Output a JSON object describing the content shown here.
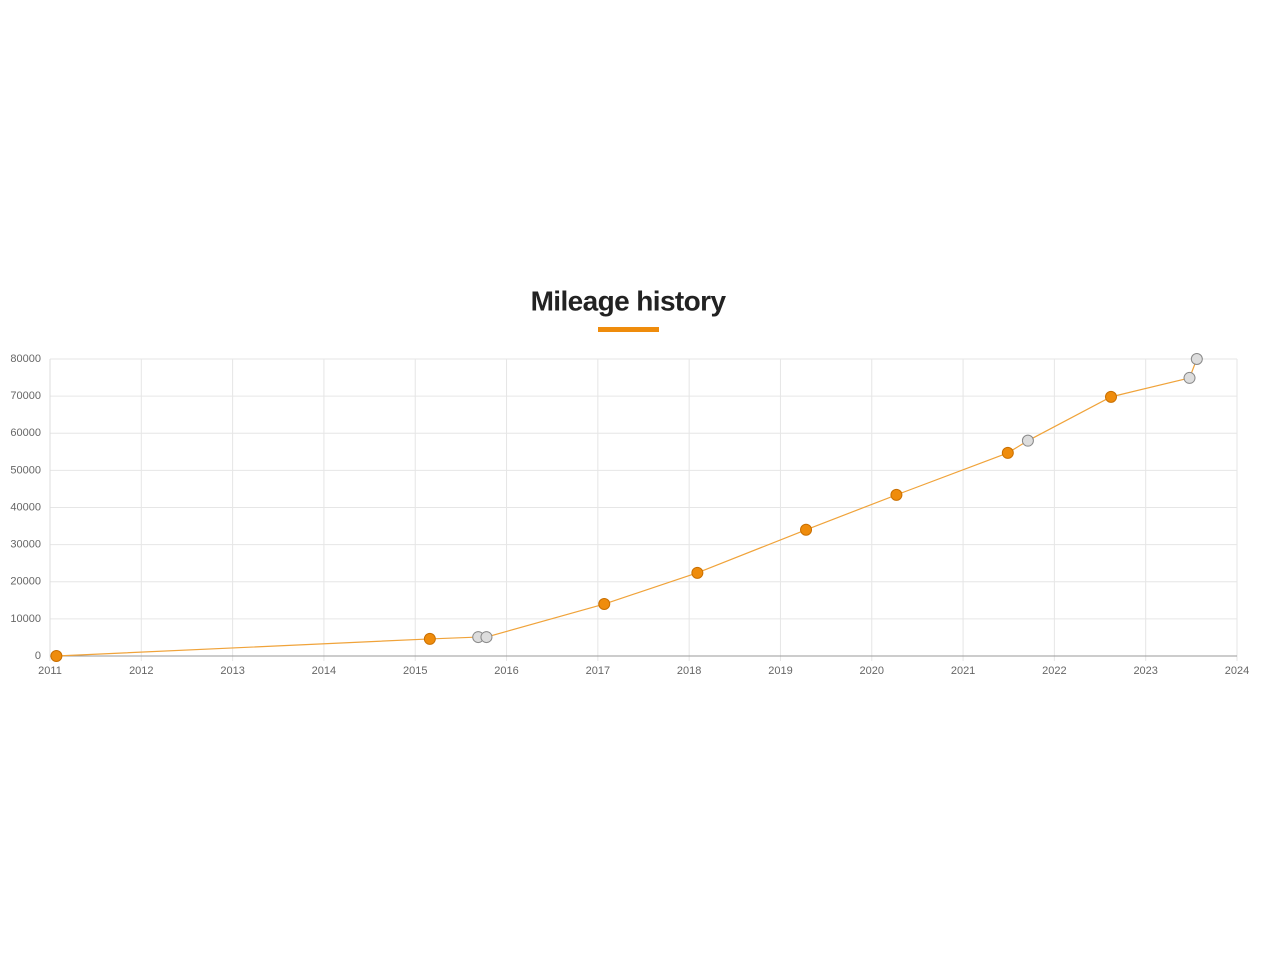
{
  "chart_data": {
    "type": "line",
    "title": "Mileage history",
    "x": [
      2011.07,
      2015.16,
      2015.69,
      2015.78,
      2017.07,
      2018.09,
      2019.28,
      2020.27,
      2021.49,
      2021.71,
      2022.62,
      2023.48,
      2023.56
    ],
    "values": [
      0,
      4600,
      5100,
      5100,
      14000,
      22400,
      34000,
      43400,
      54700,
      58000,
      69800,
      74900,
      80000
    ],
    "color": "#f0a33a",
    "point_colors": [
      "#ef8c0c",
      "#ef8c0c",
      "#dddddd",
      "#dddddd",
      "#ef8c0c",
      "#ef8c0c",
      "#ef8c0c",
      "#ef8c0c",
      "#ef8c0c",
      "#dddddd",
      "#ef8c0c",
      "#dddddd",
      "#dddddd"
    ],
    "xlim": [
      2011,
      2024
    ],
    "xticks": [
      2011,
      2012,
      2013,
      2014,
      2015,
      2016,
      2017,
      2018,
      2019,
      2020,
      2021,
      2022,
      2023,
      2024
    ],
    "ylim": [
      0,
      80000
    ],
    "yticks": [
      0,
      10000,
      20000,
      30000,
      40000,
      50000,
      60000,
      70000,
      80000
    ],
    "grid": true
  }
}
